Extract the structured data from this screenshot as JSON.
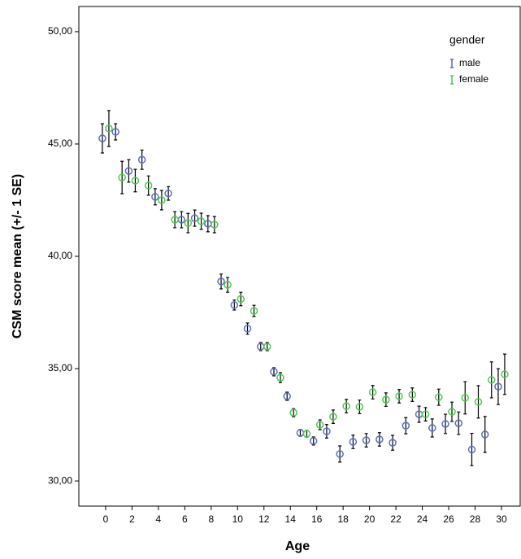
{
  "chart_data": {
    "type": "errorbar",
    "xlabel": "Age",
    "ylabel": "CSM score mean (+/- 1 SE)",
    "legend_title": "gender",
    "legend": "upper right",
    "x": [
      0,
      1,
      2,
      3,
      4,
      5,
      6,
      7,
      8,
      9,
      10,
      11,
      12,
      13,
      14,
      15,
      16,
      17,
      18,
      19,
      20,
      21,
      22,
      23,
      24,
      25,
      26,
      27,
      28,
      29,
      30
    ],
    "series": [
      {
        "name": "male",
        "color": "#5a6fb3",
        "values": [
          45.25,
          45.54,
          43.8,
          44.3,
          42.65,
          42.8,
          41.63,
          41.7,
          41.45,
          38.88,
          37.83,
          36.78,
          35.98,
          34.86,
          33.77,
          32.14,
          31.78,
          32.21,
          31.2,
          31.74,
          31.81,
          31.85,
          31.7,
          32.46,
          32.97,
          32.36,
          32.54,
          32.57,
          31.4,
          32.07,
          34.2
        ],
        "errors": [
          0.65,
          0.36,
          0.5,
          0.43,
          0.36,
          0.3,
          0.36,
          0.36,
          0.36,
          0.33,
          0.22,
          0.25,
          0.18,
          0.18,
          0.18,
          0.15,
          0.18,
          0.3,
          0.36,
          0.3,
          0.3,
          0.3,
          0.33,
          0.36,
          0.36,
          0.4,
          0.43,
          0.5,
          0.72,
          0.8,
          0.8
        ]
      },
      {
        "name": "female",
        "color": "#4dc94d",
        "values": [
          45.69,
          43.51,
          43.37,
          43.15,
          42.5,
          41.63,
          41.48,
          41.56,
          41.41,
          38.73,
          38.1,
          37.57,
          35.98,
          34.6,
          33.04,
          32.1,
          32.5,
          32.86,
          33.33,
          33.3,
          33.95,
          33.62,
          33.77,
          33.84,
          32.97,
          33.73,
          33.08,
          33.7,
          33.52,
          34.5,
          34.75
        ],
        "errors": [
          0.8,
          0.72,
          0.5,
          0.43,
          0.43,
          0.36,
          0.43,
          0.36,
          0.36,
          0.33,
          0.3,
          0.25,
          0.18,
          0.22,
          0.18,
          0.15,
          0.22,
          0.3,
          0.3,
          0.3,
          0.3,
          0.3,
          0.3,
          0.3,
          0.3,
          0.36,
          0.43,
          0.72,
          0.72,
          0.8,
          0.9
        ]
      }
    ],
    "xlim": [
      -2.03,
      31.42
    ],
    "ylim": [
      28.88,
      51.12
    ],
    "xticks": [
      0,
      2,
      4,
      6,
      8,
      10,
      12,
      14,
      16,
      18,
      20,
      22,
      24,
      26,
      28,
      30
    ],
    "yticks": [
      {
        "value": 30,
        "label": "30,00"
      },
      {
        "value": 35,
        "label": "35,00"
      },
      {
        "value": 40,
        "label": "40,00"
      },
      {
        "value": 45,
        "label": "45,00"
      },
      {
        "value": 50,
        "label": "50,00"
      }
    ]
  }
}
